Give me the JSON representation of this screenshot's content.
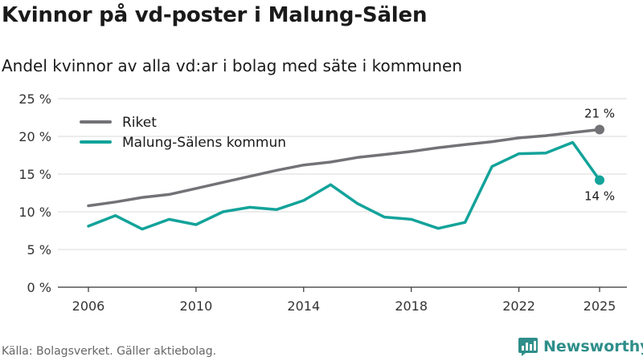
{
  "header": {
    "title": "Kvinnor på vd-poster i Malung-Sälen",
    "subtitle": "Andel kvinnor av alla vd:ar i bolag med säte i kommunen"
  },
  "footer": {
    "source": "Källa: Bolagsverket. Gäller aktiebolag.",
    "brand": "Newsworthy"
  },
  "colors": {
    "riket": "#737276",
    "kommun": "#13a39a",
    "grid": "#d9d9d9",
    "axis": "#333333",
    "brand": "#2e8e8a"
  },
  "chart_data": {
    "type": "line",
    "title": "Kvinnor på vd-poster i Malung-Sälen",
    "subtitle": "Andel kvinnor av alla vd:ar i bolag med säte i kommunen",
    "xlabel": "",
    "ylabel": "",
    "ylim": [
      0,
      25
    ],
    "yticks": [
      0,
      5,
      10,
      15,
      20,
      25
    ],
    "ytick_labels": [
      "0 %",
      "5 %",
      "10 %",
      "15 %",
      "20 %",
      "25 %"
    ],
    "xlim": [
      2006,
      2025
    ],
    "xticks": [
      2006,
      2010,
      2014,
      2018,
      2022,
      2025
    ],
    "xtick_labels": [
      "2006",
      "2010",
      "2014",
      "2018",
      "2022",
      "2025"
    ],
    "grid": true,
    "legend_position": "top-left",
    "x": [
      2006,
      2007,
      2008,
      2009,
      2010,
      2011,
      2012,
      2013,
      2014,
      2015,
      2016,
      2017,
      2018,
      2019,
      2020,
      2021,
      2022,
      2023,
      2024,
      2025
    ],
    "series": [
      {
        "name": "Riket",
        "color": "#737276",
        "values": [
          10.8,
          11.3,
          11.9,
          12.3,
          13.1,
          13.9,
          14.7,
          15.5,
          16.2,
          16.6,
          17.2,
          17.6,
          18.0,
          18.5,
          18.9,
          19.3,
          19.8,
          20.1,
          20.5,
          20.9
        ],
        "end_label": "21 %"
      },
      {
        "name": "Malung-Sälens kommun",
        "color": "#13a39a",
        "values": [
          8.1,
          9.5,
          7.7,
          9.0,
          8.3,
          10.0,
          10.6,
          10.3,
          11.5,
          13.6,
          11.1,
          9.3,
          9.0,
          7.8,
          8.6,
          16.0,
          17.7,
          17.8,
          19.2,
          14.2
        ],
        "end_label": "14 %"
      }
    ]
  }
}
